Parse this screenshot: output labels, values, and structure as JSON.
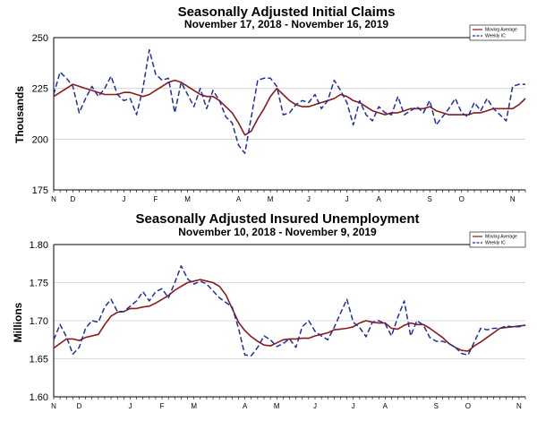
{
  "chart_data": [
    {
      "type": "line",
      "title": "Seasonally Adjusted Initial Claims",
      "subtitle": "November 17, 2018 - November 16, 2019",
      "ylabel": "Thousands",
      "xlabel": "",
      "ylim": [
        175,
        250
      ],
      "yticks": [
        "175",
        "200",
        "225",
        "250"
      ],
      "ytick_values": [
        175,
        200,
        225,
        250
      ],
      "xticks": [
        "N",
        "D",
        "J",
        "F",
        "M",
        "A",
        "M",
        "J",
        "J",
        "A",
        "S",
        "O",
        "N"
      ],
      "xtick_positions": [
        0,
        3,
        11,
        16,
        21,
        29,
        34,
        40,
        46,
        51,
        59,
        64,
        72
      ],
      "grid": true,
      "legend": "top-right",
      "series": [
        {
          "name": "Moving Average",
          "style": "solid",
          "color": "#8b1a1a",
          "values": [
            221,
            223,
            225,
            227,
            226,
            225,
            224,
            223,
            222,
            222,
            222,
            223,
            223,
            222,
            221,
            222,
            224,
            226,
            228,
            229,
            228,
            226,
            224,
            222,
            221,
            221,
            219,
            216,
            213,
            208,
            202,
            204,
            210,
            215,
            221,
            225,
            222,
            219,
            217,
            216,
            216,
            217,
            218,
            219,
            220,
            222,
            221,
            219,
            218,
            216,
            214,
            213,
            212,
            213,
            213,
            214,
            215,
            215,
            215,
            216,
            214,
            213,
            212,
            212,
            212,
            212,
            213,
            213,
            214,
            215,
            215,
            215,
            215,
            217,
            220
          ]
        },
        {
          "name": "Weekly IC",
          "style": "dashed",
          "color": "#1f2fa0",
          "values": [
            222,
            233,
            230,
            226,
            213,
            220,
            226,
            221,
            225,
            231,
            222,
            219,
            220,
            212,
            225,
            244,
            232,
            229,
            230,
            213,
            228,
            222,
            216,
            225,
            215,
            224,
            219,
            211,
            208,
            197,
            193,
            211,
            229,
            230,
            230,
            226,
            212,
            213,
            217,
            219,
            218,
            222,
            215,
            219,
            229,
            224,
            218,
            207,
            219,
            212,
            209,
            216,
            213,
            212,
            221,
            212,
            214,
            216,
            213,
            219,
            207,
            211,
            215,
            220,
            213,
            211,
            218,
            214,
            220,
            215,
            212,
            209,
            226,
            227,
            227
          ]
        }
      ]
    },
    {
      "type": "line",
      "title": "Seasonally Adjusted Insured Unemployment",
      "subtitle": "November 10, 2018 - November 9, 2019",
      "ylabel": "Millions",
      "xlabel": "",
      "ylim": [
        1.6,
        1.8
      ],
      "yticks": [
        "1.60",
        "1.65",
        "1.70",
        "1.75",
        "1.80"
      ],
      "ytick_values": [
        1.6,
        1.65,
        1.7,
        1.75,
        1.8
      ],
      "xticks": [
        "N",
        "D",
        "J",
        "F",
        "M",
        "A",
        "M",
        "J",
        "J",
        "A",
        "S",
        "O",
        "N"
      ],
      "xtick_positions": [
        0,
        4,
        12,
        17,
        22,
        30,
        35,
        41,
        47,
        52,
        60,
        65,
        73
      ],
      "grid": true,
      "legend": "top-right",
      "series": [
        {
          "name": "Moving Average",
          "style": "solid",
          "color": "#8b1a1a",
          "values": [
            1.664,
            1.67,
            1.676,
            1.676,
            1.674,
            1.678,
            1.68,
            1.682,
            1.695,
            1.706,
            1.711,
            1.712,
            1.716,
            1.716,
            1.718,
            1.719,
            1.723,
            1.728,
            1.733,
            1.74,
            1.745,
            1.75,
            1.752,
            1.754,
            1.752,
            1.75,
            1.745,
            1.734,
            1.716,
            1.698,
            1.687,
            1.679,
            1.673,
            1.668,
            1.667,
            1.671,
            1.675,
            1.676,
            1.676,
            1.677,
            1.677,
            1.68,
            1.682,
            1.684,
            1.688,
            1.689,
            1.69,
            1.692,
            1.697,
            1.7,
            1.698,
            1.697,
            1.697,
            1.69,
            1.689,
            1.694,
            1.697,
            1.695,
            1.695,
            1.69,
            1.684,
            1.678,
            1.67,
            1.665,
            1.661,
            1.66,
            1.667,
            1.672,
            1.678,
            1.684,
            1.69,
            1.691,
            1.692,
            1.693,
            1.694
          ]
        },
        {
          "name": "Weekly IC",
          "style": "dashed",
          "color": "#1f2fa0",
          "values": [
            1.675,
            1.695,
            1.679,
            1.656,
            1.665,
            1.69,
            1.7,
            1.698,
            1.718,
            1.728,
            1.712,
            1.712,
            1.719,
            1.726,
            1.738,
            1.726,
            1.738,
            1.742,
            1.73,
            1.75,
            1.772,
            1.755,
            1.748,
            1.752,
            1.748,
            1.739,
            1.73,
            1.724,
            1.718,
            1.69,
            1.655,
            1.654,
            1.665,
            1.68,
            1.675,
            1.666,
            1.67,
            1.676,
            1.665,
            1.692,
            1.7,
            1.686,
            1.68,
            1.675,
            1.691,
            1.71,
            1.728,
            1.698,
            1.691,
            1.679,
            1.698,
            1.7,
            1.696,
            1.68,
            1.705,
            1.726,
            1.68,
            1.7,
            1.694,
            1.678,
            1.673,
            1.673,
            1.67,
            1.665,
            1.657,
            1.655,
            1.672,
            1.69,
            1.688,
            1.69,
            1.69,
            1.693,
            1.692,
            1.692,
            1.694
          ]
        }
      ]
    }
  ]
}
